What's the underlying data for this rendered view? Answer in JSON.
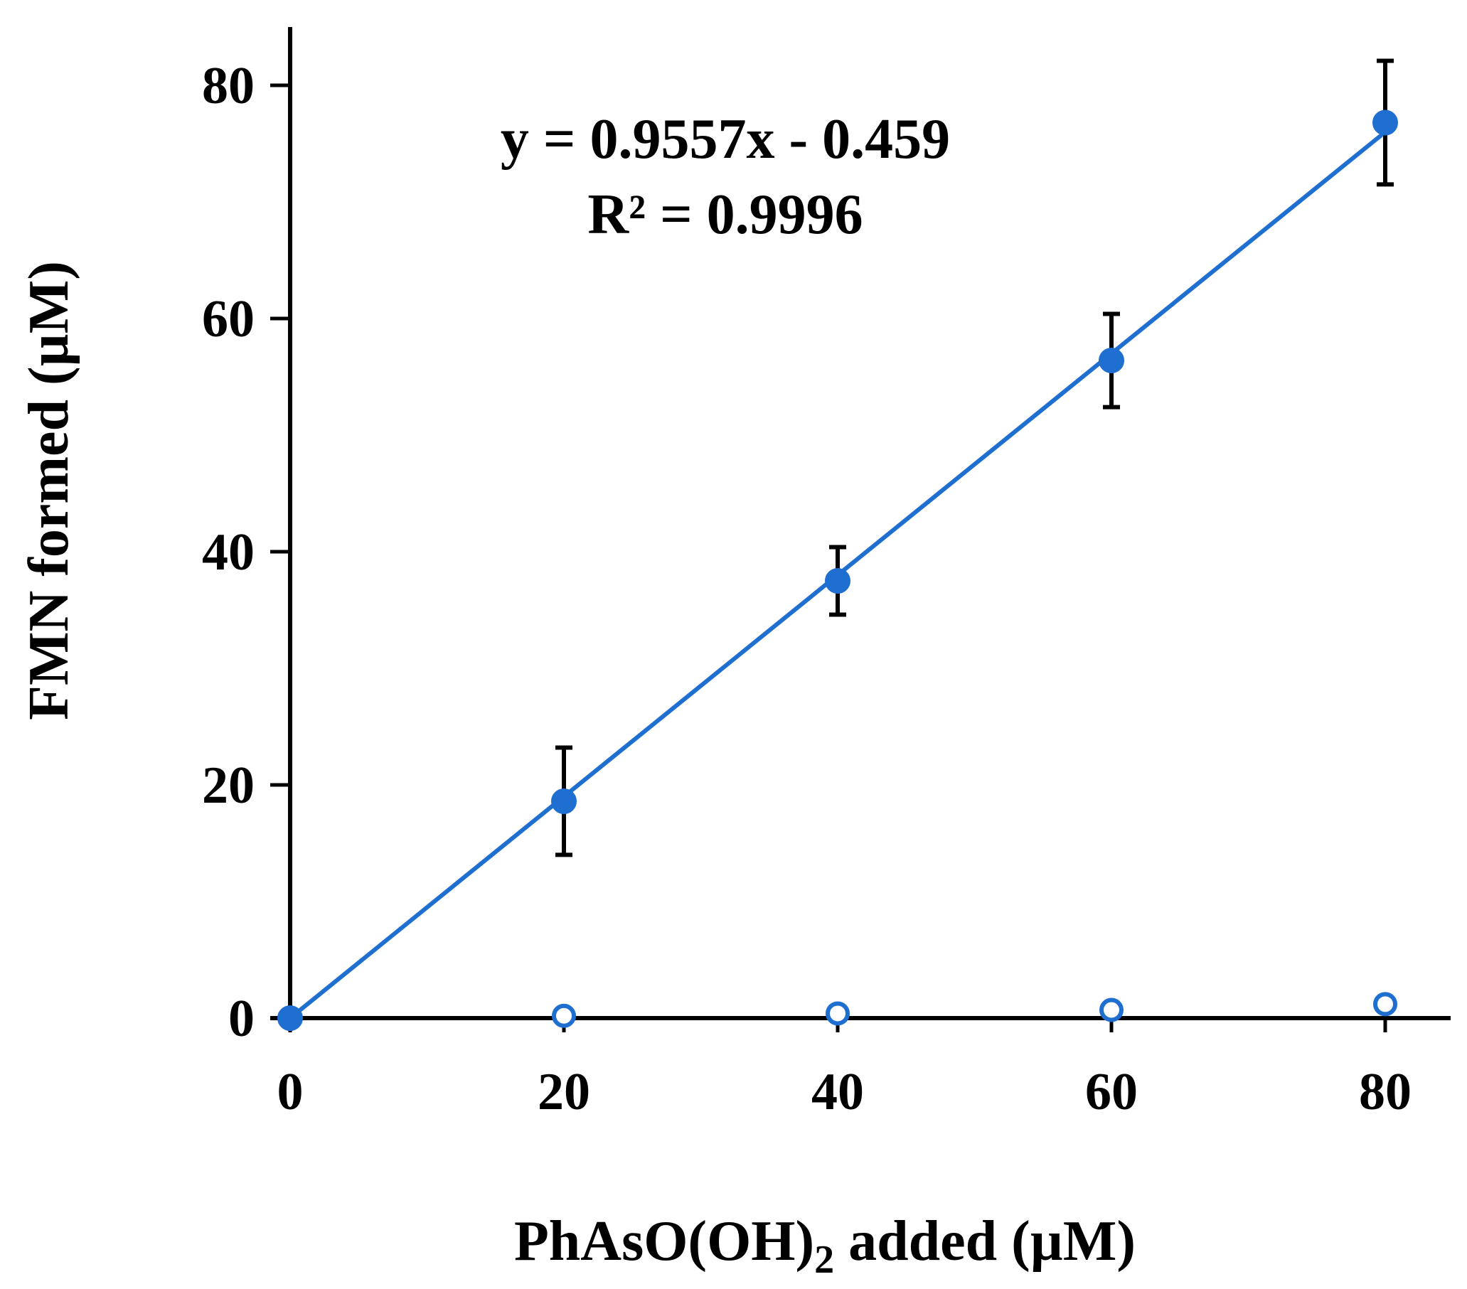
{
  "chart_data": {
    "type": "scatter",
    "title": "",
    "xlabel": "PhAsO(OH)",
    "xlabel_subscript": "2",
    "xlabel_suffix": " added (µM)",
    "ylabel": "FMN formed (µM)",
    "xlim": [
      0,
      85
    ],
    "ylim": [
      0,
      85
    ],
    "x_ticks": [
      "0",
      "20",
      "40",
      "60",
      "80"
    ],
    "y_ticks": [
      "0",
      "20",
      "40",
      "60",
      "80"
    ],
    "x_tick_values": [
      0,
      20,
      40,
      60,
      80
    ],
    "y_tick_values": [
      0,
      20,
      40,
      60,
      80
    ],
    "grid": false,
    "color": "#1f6fd1",
    "series": [
      {
        "style": "filled",
        "x": [
          0,
          20,
          40,
          60,
          80
        ],
        "y": [
          0,
          18.6,
          37.5,
          56.4,
          76.8
        ],
        "err": [
          0,
          4.6,
          2.9,
          4.0,
          5.3
        ]
      },
      {
        "style": "open",
        "x": [
          0,
          20,
          40,
          60,
          80
        ],
        "y": [
          0,
          0.2,
          0.4,
          0.7,
          1.2
        ]
      }
    ],
    "trendline": {
      "slope": 0.9557,
      "intercept": -0.459,
      "x_range": [
        0,
        80
      ],
      "equation": "y = 0.9557x - 0.459",
      "r_squared": "R² = 0.9996"
    }
  }
}
